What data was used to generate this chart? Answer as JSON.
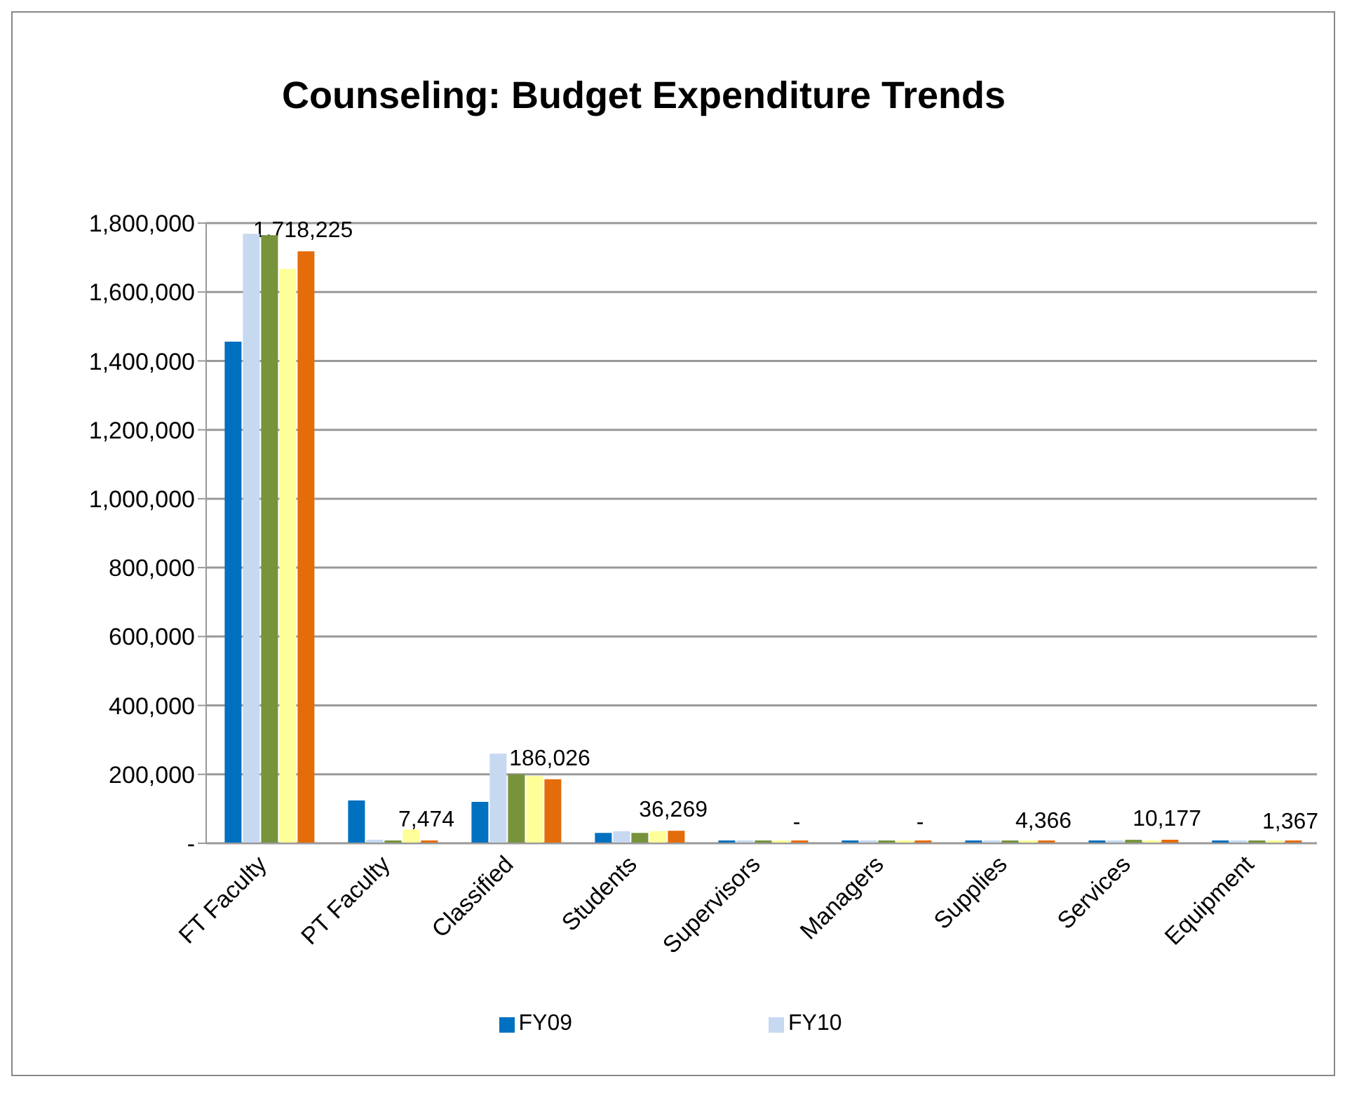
{
  "chart_data": {
    "type": "bar",
    "title": "Counseling: Budget Expenditure Trends",
    "categories": [
      "FT Faculty",
      "PT Faculty",
      "Classified",
      "Students",
      "Supervisors",
      "Managers",
      "Supplies",
      "Services",
      "Equipment"
    ],
    "series": [
      {
        "name": "FY09",
        "color": "#0070c0",
        "values": [
          1456000,
          124000,
          120000,
          30000,
          3000,
          3000,
          4000,
          8000,
          3000
        ]
      },
      {
        "name": "FY10",
        "color": "#c6d9f1",
        "values": [
          1769000,
          10000,
          260000,
          35000,
          1000,
          1000,
          5000,
          6000,
          2000
        ]
      },
      {
        "color": "#77933c",
        "values": [
          1765000,
          5000,
          200000,
          30000,
          1000,
          1000,
          4000,
          10000,
          2000
        ]
      },
      {
        "color": "#ffff99",
        "values": [
          1667000,
          40000,
          195000,
          35000,
          0,
          0,
          4000,
          8000,
          2000
        ]
      },
      {
        "color": "#e46c0a",
        "values": [
          1718225,
          7474,
          186026,
          36269,
          0,
          0,
          4366,
          10177,
          1367
        ],
        "value_labels": [
          "1,718,225",
          "7,474",
          "186,026",
          "36,269",
          "-",
          "-",
          "4,366",
          "10,177",
          "1,367"
        ]
      }
    ],
    "ylim": [
      0,
      1800000
    ],
    "yticks": [
      {
        "value": 0,
        "label": "-"
      },
      {
        "value": 200000,
        "label": "200,000"
      },
      {
        "value": 400000,
        "label": "400,000"
      },
      {
        "value": 600000,
        "label": "600,000"
      },
      {
        "value": 800000,
        "label": "800,000"
      },
      {
        "value": 1000000,
        "label": "1,000,000"
      },
      {
        "value": 1200000,
        "label": "1,200,000"
      },
      {
        "value": 1400000,
        "label": "1,400,000"
      },
      {
        "value": 1600000,
        "label": "1,600,000"
      },
      {
        "value": 1800000,
        "label": "1,800,000"
      }
    ],
    "grid": "y",
    "legend": "bottom"
  }
}
